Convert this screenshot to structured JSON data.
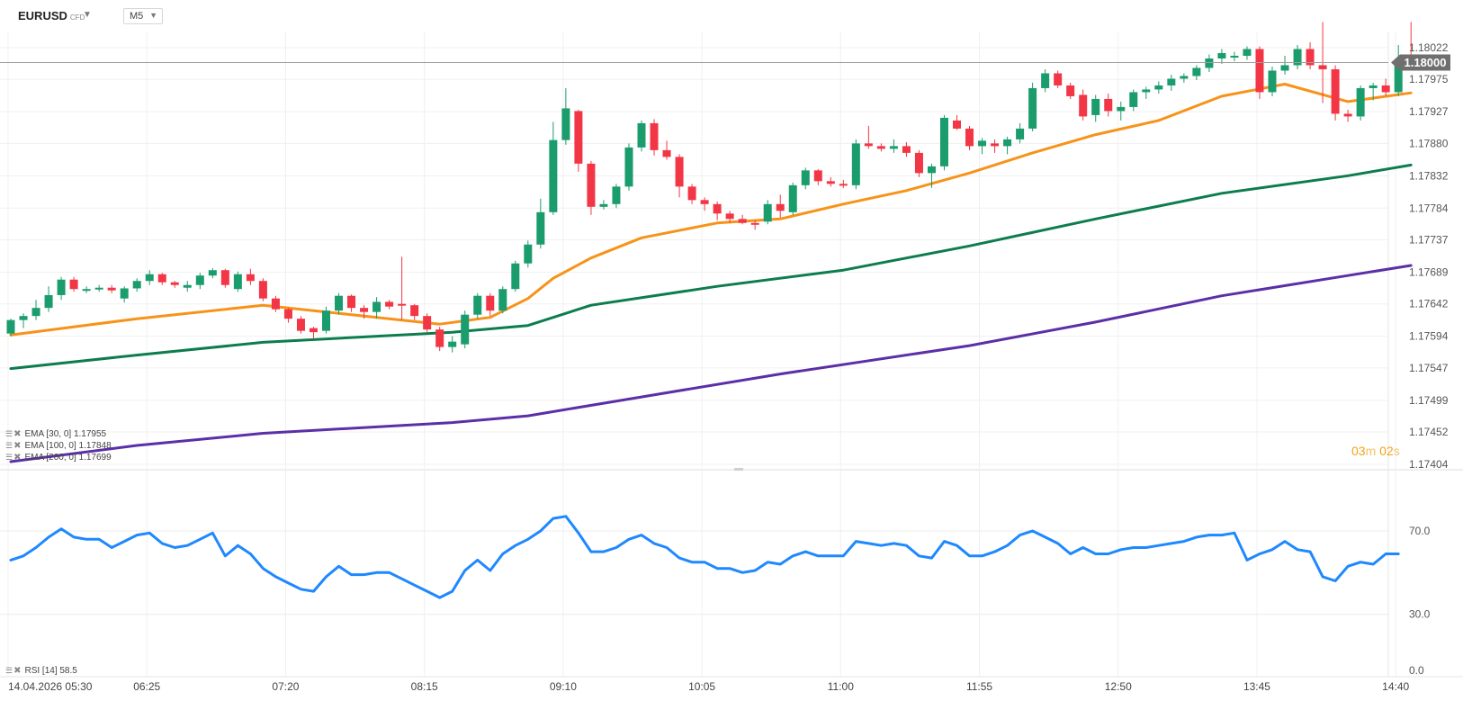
{
  "header": {
    "symbol": "EURUSD",
    "symbol_type": "CFD",
    "timeframe": "M5"
  },
  "price_badge": "1.18000",
  "countdown": {
    "minutes": "03",
    "minutes_unit": "m",
    "seconds": "02",
    "seconds_unit": "s"
  },
  "legend": {
    "ema30": "EMA [30, 0] 1.17955",
    "ema100": "EMA [100, 0] 1.17848",
    "ema200": "EMA [200, 0] 1.17699",
    "rsi": "RSI [14] 58.5"
  },
  "colors": {
    "up": "#1a9c6c",
    "down": "#f23645",
    "ema30": "#f7931a",
    "ema100": "#0d7d4d",
    "ema200": "#5b2fa6",
    "rsi": "#1e88ff",
    "grid": "#f0f0f0",
    "price_line": "#9e9e9e",
    "countdown": "#f5a21a"
  },
  "chart_data": [
    {
      "type": "candlestick",
      "symbol": "EURUSD",
      "timeframe": "M5",
      "x_tick_labels": [
        "14.04.2026 05:30",
        "06:25",
        "07:20",
        "08:15",
        "09:10",
        "10:05",
        "11:00",
        "11:55",
        "12:50",
        "13:45",
        "14:40"
      ],
      "y_tick_labels": [
        "1.18022",
        "1.17975",
        "1.17927",
        "1.17880",
        "1.17832",
        "1.17784",
        "1.17737",
        "1.17689",
        "1.17642",
        "1.17594",
        "1.17547",
        "1.17499",
        "1.17452",
        "1.17404"
      ],
      "ylim": [
        1.17404,
        1.1805
      ],
      "current_price": 1.18,
      "candles": [
        {
          "o": 1.17598,
          "h": 1.1762,
          "l": 1.17594,
          "c": 1.17618
        },
        {
          "o": 1.17618,
          "h": 1.17628,
          "l": 1.17606,
          "c": 1.17624
        },
        {
          "o": 1.17624,
          "h": 1.17648,
          "l": 1.17618,
          "c": 1.17636
        },
        {
          "o": 1.17636,
          "h": 1.17668,
          "l": 1.1763,
          "c": 1.17655
        },
        {
          "o": 1.17655,
          "h": 1.17682,
          "l": 1.17648,
          "c": 1.17678
        },
        {
          "o": 1.17678,
          "h": 1.17682,
          "l": 1.1766,
          "c": 1.17664
        },
        {
          "o": 1.17664,
          "h": 1.17668,
          "l": 1.17658,
          "c": 1.17664
        },
        {
          "o": 1.17664,
          "h": 1.1767,
          "l": 1.1766,
          "c": 1.17666
        },
        {
          "o": 1.17666,
          "h": 1.1767,
          "l": 1.17658,
          "c": 1.17662
        },
        {
          "o": 1.1765,
          "h": 1.17668,
          "l": 1.17644,
          "c": 1.17665
        },
        {
          "o": 1.17665,
          "h": 1.1768,
          "l": 1.1766,
          "c": 1.17676
        },
        {
          "o": 1.17676,
          "h": 1.17692,
          "l": 1.1767,
          "c": 1.17686
        },
        {
          "o": 1.17686,
          "h": 1.17688,
          "l": 1.1767,
          "c": 1.17674
        },
        {
          "o": 1.17674,
          "h": 1.17676,
          "l": 1.17666,
          "c": 1.1767
        },
        {
          "o": 1.17666,
          "h": 1.17676,
          "l": 1.1766,
          "c": 1.1767
        },
        {
          "o": 1.1767,
          "h": 1.17688,
          "l": 1.17664,
          "c": 1.17684
        },
        {
          "o": 1.17684,
          "h": 1.17695,
          "l": 1.1768,
          "c": 1.17692
        },
        {
          "o": 1.17692,
          "h": 1.17694,
          "l": 1.17666,
          "c": 1.1767
        },
        {
          "o": 1.17664,
          "h": 1.1769,
          "l": 1.1766,
          "c": 1.17686
        },
        {
          "o": 1.17686,
          "h": 1.17694,
          "l": 1.1767,
          "c": 1.17676
        },
        {
          "o": 1.17676,
          "h": 1.1768,
          "l": 1.17646,
          "c": 1.1765
        },
        {
          "o": 1.1765,
          "h": 1.17654,
          "l": 1.1763,
          "c": 1.17634
        },
        {
          "o": 1.17634,
          "h": 1.17636,
          "l": 1.17614,
          "c": 1.1762
        },
        {
          "o": 1.1762,
          "h": 1.17624,
          "l": 1.17598,
          "c": 1.17602
        },
        {
          "o": 1.17606,
          "h": 1.17608,
          "l": 1.1759,
          "c": 1.176
        },
        {
          "o": 1.17602,
          "h": 1.17638,
          "l": 1.17598,
          "c": 1.17632
        },
        {
          "o": 1.17632,
          "h": 1.17658,
          "l": 1.17626,
          "c": 1.17654
        },
        {
          "o": 1.17654,
          "h": 1.17656,
          "l": 1.1763,
          "c": 1.17636
        },
        {
          "o": 1.17636,
          "h": 1.1764,
          "l": 1.1762,
          "c": 1.1763
        },
        {
          "o": 1.1763,
          "h": 1.17652,
          "l": 1.1762,
          "c": 1.17645
        },
        {
          "o": 1.17645,
          "h": 1.17648,
          "l": 1.17634,
          "c": 1.17638
        },
        {
          "o": 1.17642,
          "h": 1.17712,
          "l": 1.17618,
          "c": 1.1764
        },
        {
          "o": 1.1764,
          "h": 1.17642,
          "l": 1.17618,
          "c": 1.17624
        },
        {
          "o": 1.17624,
          "h": 1.17628,
          "l": 1.176,
          "c": 1.17604
        },
        {
          "o": 1.17604,
          "h": 1.17608,
          "l": 1.17572,
          "c": 1.17578
        },
        {
          "o": 1.17578,
          "h": 1.17594,
          "l": 1.1757,
          "c": 1.17586
        },
        {
          "o": 1.17582,
          "h": 1.17632,
          "l": 1.17576,
          "c": 1.17626
        },
        {
          "o": 1.17626,
          "h": 1.17658,
          "l": 1.1762,
          "c": 1.17654
        },
        {
          "o": 1.17654,
          "h": 1.17658,
          "l": 1.17624,
          "c": 1.17632
        },
        {
          "o": 1.17632,
          "h": 1.17668,
          "l": 1.17628,
          "c": 1.17664
        },
        {
          "o": 1.17664,
          "h": 1.17706,
          "l": 1.1766,
          "c": 1.17702
        },
        {
          "o": 1.17702,
          "h": 1.17736,
          "l": 1.17696,
          "c": 1.1773
        },
        {
          "o": 1.1773,
          "h": 1.17798,
          "l": 1.17724,
          "c": 1.17778
        },
        {
          "o": 1.17778,
          "h": 1.17912,
          "l": 1.17774,
          "c": 1.17885
        },
        {
          "o": 1.17885,
          "h": 1.17962,
          "l": 1.17878,
          "c": 1.17932
        },
        {
          "o": 1.17928,
          "h": 1.1793,
          "l": 1.17838,
          "c": 1.1785
        },
        {
          "o": 1.1785,
          "h": 1.17854,
          "l": 1.17774,
          "c": 1.17786
        },
        {
          "o": 1.17786,
          "h": 1.17796,
          "l": 1.17782,
          "c": 1.1779
        },
        {
          "o": 1.1779,
          "h": 1.1782,
          "l": 1.17784,
          "c": 1.17816
        },
        {
          "o": 1.17816,
          "h": 1.1788,
          "l": 1.1781,
          "c": 1.17874
        },
        {
          "o": 1.17874,
          "h": 1.17914,
          "l": 1.17868,
          "c": 1.1791
        },
        {
          "o": 1.1791,
          "h": 1.17916,
          "l": 1.17862,
          "c": 1.1787
        },
        {
          "o": 1.1787,
          "h": 1.17884,
          "l": 1.17856,
          "c": 1.1786
        },
        {
          "o": 1.1786,
          "h": 1.17864,
          "l": 1.178,
          "c": 1.17816
        },
        {
          "o": 1.17816,
          "h": 1.1782,
          "l": 1.1779,
          "c": 1.17796
        },
        {
          "o": 1.17796,
          "h": 1.178,
          "l": 1.1778,
          "c": 1.1779
        },
        {
          "o": 1.1779,
          "h": 1.17794,
          "l": 1.17766,
          "c": 1.17776
        },
        {
          "o": 1.17776,
          "h": 1.1778,
          "l": 1.17762,
          "c": 1.17768
        },
        {
          "o": 1.17768,
          "h": 1.17774,
          "l": 1.1776,
          "c": 1.17762
        },
        {
          "o": 1.17762,
          "h": 1.17766,
          "l": 1.17752,
          "c": 1.1776
        },
        {
          "o": 1.17764,
          "h": 1.17796,
          "l": 1.1776,
          "c": 1.1779
        },
        {
          "o": 1.1779,
          "h": 1.17804,
          "l": 1.1777,
          "c": 1.1778
        },
        {
          "o": 1.17778,
          "h": 1.17822,
          "l": 1.17774,
          "c": 1.17818
        },
        {
          "o": 1.17818,
          "h": 1.17844,
          "l": 1.17812,
          "c": 1.1784
        },
        {
          "o": 1.1784,
          "h": 1.17842,
          "l": 1.17818,
          "c": 1.17824
        },
        {
          "o": 1.17824,
          "h": 1.1783,
          "l": 1.17816,
          "c": 1.1782
        },
        {
          "o": 1.1782,
          "h": 1.17826,
          "l": 1.17814,
          "c": 1.17818
        },
        {
          "o": 1.17818,
          "h": 1.17886,
          "l": 1.17812,
          "c": 1.1788
        },
        {
          "o": 1.1788,
          "h": 1.17906,
          "l": 1.17872,
          "c": 1.17876
        },
        {
          "o": 1.17876,
          "h": 1.1788,
          "l": 1.17868,
          "c": 1.17872
        },
        {
          "o": 1.17872,
          "h": 1.17886,
          "l": 1.17866,
          "c": 1.17876
        },
        {
          "o": 1.17876,
          "h": 1.17882,
          "l": 1.1786,
          "c": 1.17866
        },
        {
          "o": 1.17866,
          "h": 1.1787,
          "l": 1.1783,
          "c": 1.17836
        },
        {
          "o": 1.17836,
          "h": 1.1785,
          "l": 1.17814,
          "c": 1.17846
        },
        {
          "o": 1.17846,
          "h": 1.17922,
          "l": 1.1784,
          "c": 1.17918
        },
        {
          "o": 1.17914,
          "h": 1.17922,
          "l": 1.179,
          "c": 1.17902
        },
        {
          "o": 1.17902,
          "h": 1.17906,
          "l": 1.1787,
          "c": 1.17876
        },
        {
          "o": 1.17876,
          "h": 1.17888,
          "l": 1.17864,
          "c": 1.17884
        },
        {
          "o": 1.1788,
          "h": 1.17886,
          "l": 1.17866,
          "c": 1.17876
        },
        {
          "o": 1.17876,
          "h": 1.1789,
          "l": 1.17864,
          "c": 1.17886
        },
        {
          "o": 1.17886,
          "h": 1.1791,
          "l": 1.1788,
          "c": 1.17902
        },
        {
          "o": 1.17902,
          "h": 1.1797,
          "l": 1.17898,
          "c": 1.17962
        },
        {
          "o": 1.17962,
          "h": 1.1799,
          "l": 1.17956,
          "c": 1.17984
        },
        {
          "o": 1.17984,
          "h": 1.17988,
          "l": 1.17962,
          "c": 1.17966
        },
        {
          "o": 1.17966,
          "h": 1.1797,
          "l": 1.17946,
          "c": 1.1795
        },
        {
          "o": 1.17952,
          "h": 1.1796,
          "l": 1.17914,
          "c": 1.1792
        },
        {
          "o": 1.17922,
          "h": 1.17952,
          "l": 1.17912,
          "c": 1.17946
        },
        {
          "o": 1.17946,
          "h": 1.17954,
          "l": 1.1792,
          "c": 1.17928
        },
        {
          "o": 1.17928,
          "h": 1.17942,
          "l": 1.17914,
          "c": 1.17934
        },
        {
          "o": 1.17934,
          "h": 1.1796,
          "l": 1.17928,
          "c": 1.17956
        },
        {
          "o": 1.17956,
          "h": 1.17964,
          "l": 1.17946,
          "c": 1.1796
        },
        {
          "o": 1.1796,
          "h": 1.17972,
          "l": 1.17954,
          "c": 1.17966
        },
        {
          "o": 1.17966,
          "h": 1.17982,
          "l": 1.17958,
          "c": 1.17976
        },
        {
          "o": 1.17976,
          "h": 1.17984,
          "l": 1.1797,
          "c": 1.1798
        },
        {
          "o": 1.1798,
          "h": 1.17996,
          "l": 1.17974,
          "c": 1.17992
        },
        {
          "o": 1.17992,
          "h": 1.18012,
          "l": 1.17986,
          "c": 1.18006
        },
        {
          "o": 1.18006,
          "h": 1.1802,
          "l": 1.17998,
          "c": 1.18014
        },
        {
          "o": 1.1801,
          "h": 1.18016,
          "l": 1.18002,
          "c": 1.1801
        },
        {
          "o": 1.1801,
          "h": 1.18024,
          "l": 1.18004,
          "c": 1.1802
        },
        {
          "o": 1.1802,
          "h": 1.18024,
          "l": 1.17946,
          "c": 1.17956
        },
        {
          "o": 1.17956,
          "h": 1.17994,
          "l": 1.1795,
          "c": 1.17988
        },
        {
          "o": 1.17988,
          "h": 1.1801,
          "l": 1.17982,
          "c": 1.17996
        },
        {
          "o": 1.17996,
          "h": 1.18026,
          "l": 1.1799,
          "c": 1.1802
        },
        {
          "o": 1.1802,
          "h": 1.1803,
          "l": 1.1799,
          "c": 1.17996
        },
        {
          "o": 1.17996,
          "h": 1.1806,
          "l": 1.1794,
          "c": 1.1799
        },
        {
          "o": 1.1799,
          "h": 1.17996,
          "l": 1.17914,
          "c": 1.17924
        },
        {
          "o": 1.17924,
          "h": 1.1793,
          "l": 1.17912,
          "c": 1.1792
        },
        {
          "o": 1.1792,
          "h": 1.17966,
          "l": 1.17914,
          "c": 1.17962
        },
        {
          "o": 1.17962,
          "h": 1.1797,
          "l": 1.17944,
          "c": 1.17966
        },
        {
          "o": 1.17966,
          "h": 1.17976,
          "l": 1.1795,
          "c": 1.17956
        },
        {
          "o": 1.17956,
          "h": 1.18026,
          "l": 1.1795,
          "c": 1.18
        },
        {
          "o": 1.18002,
          "h": 1.1806,
          "l": 1.17996,
          "c": 1.18
        }
      ],
      "ema": [
        {
          "name": "EMA [30, 0]",
          "color": "#f7931a",
          "points": [
            [
              0,
              1.17596
            ],
            [
              10,
              1.1762
            ],
            [
              20,
              1.1764
            ],
            [
              25,
              1.1763
            ],
            [
              30,
              1.1762
            ],
            [
              34,
              1.17612
            ],
            [
              38,
              1.17622
            ],
            [
              41,
              1.1765
            ],
            [
              43,
              1.1768
            ],
            [
              46,
              1.1771
            ],
            [
              50,
              1.1774
            ],
            [
              56,
              1.17762
            ],
            [
              61,
              1.17768
            ],
            [
              66,
              1.1779
            ],
            [
              71,
              1.1781
            ],
            [
              76,
              1.17836
            ],
            [
              81,
              1.17866
            ],
            [
              86,
              1.17893
            ],
            [
              91,
              1.17914
            ],
            [
              96,
              1.1795
            ],
            [
              101,
              1.17968
            ],
            [
              106,
              1.17942
            ],
            [
              111,
              1.17955
            ]
          ]
        },
        {
          "name": "EMA [100, 0]",
          "color": "#0d7d4d",
          "points": [
            [
              0,
              1.17546
            ],
            [
              10,
              1.17566
            ],
            [
              20,
              1.17585
            ],
            [
              35,
              1.176
            ],
            [
              41,
              1.1761
            ],
            [
              46,
              1.1764
            ],
            [
              56,
              1.17668
            ],
            [
              66,
              1.17692
            ],
            [
              76,
              1.17728
            ],
            [
              86,
              1.17768
            ],
            [
              96,
              1.17806
            ],
            [
              106,
              1.17832
            ],
            [
              111,
              1.17848
            ]
          ]
        },
        {
          "name": "EMA [200, 0]",
          "color": "#5b2fa6",
          "points": [
            [
              0,
              1.17408
            ],
            [
              10,
              1.17432
            ],
            [
              20,
              1.1745
            ],
            [
              35,
              1.17466
            ],
            [
              41,
              1.17476
            ],
            [
              50,
              1.17504
            ],
            [
              61,
              1.17538
            ],
            [
              76,
              1.1758
            ],
            [
              86,
              1.17615
            ],
            [
              96,
              1.17654
            ],
            [
              106,
              1.17684
            ],
            [
              111,
              1.17699
            ]
          ]
        }
      ]
    },
    {
      "type": "line",
      "name": "RSI [14]",
      "y_tick_labels": [
        "70.0",
        "30.0",
        "0.0"
      ],
      "ylim": [
        0,
        100
      ],
      "values": [
        56,
        58,
        62,
        67,
        71,
        67,
        66,
        66,
        62,
        65,
        68,
        69,
        64,
        62,
        63,
        66,
        69,
        58,
        63,
        59,
        52,
        48,
        45,
        42,
        41,
        48,
        53,
        49,
        49,
        50,
        50,
        47,
        44,
        41,
        38,
        41,
        51,
        56,
        51,
        59,
        63,
        66,
        70,
        76,
        77,
        69,
        60,
        60,
        62,
        66,
        68,
        64,
        62,
        57,
        55,
        55,
        52,
        52,
        50,
        51,
        55,
        54,
        58,
        60,
        58,
        58,
        58,
        65,
        64,
        63,
        64,
        63,
        58,
        57,
        65,
        63,
        58,
        58,
        60,
        63,
        68,
        70,
        67,
        64,
        59,
        62,
        59,
        59,
        61,
        62,
        62,
        63,
        64,
        65,
        67,
        68,
        68,
        69,
        56,
        59,
        61,
        65,
        61,
        60,
        48,
        46,
        53,
        55,
        54,
        59,
        59
      ]
    }
  ]
}
